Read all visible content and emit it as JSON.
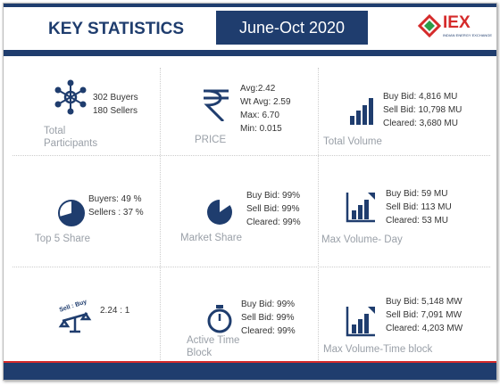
{
  "header": {
    "title": "KEY STATISTICS",
    "period": "June-Oct 2020",
    "logo": {
      "name": "IEX",
      "tagline": "INDIAN ENERGY EXCHANGE"
    }
  },
  "cells": [
    {
      "label": "Total Participants",
      "lines": [
        "302 Buyers",
        "180 Sellers"
      ]
    },
    {
      "label": "PRICE",
      "lines": [
        "Avg:2.42",
        "Wt Avg: 2.59",
        "Max: 6.70",
        "Min: 0.015"
      ]
    },
    {
      "label": "Total Volume",
      "lines": [
        "Buy Bid: 4,816 MU",
        "Sell Bid: 10,798 MU",
        "Cleared: 3,680 MU"
      ]
    },
    {
      "label": "Top 5 Share",
      "lines": [
        "Buyers: 49 %",
        "Sellers : 37 %"
      ]
    },
    {
      "label": "Market Share",
      "lines": [
        "Buy Bid: 99%",
        "Sell Bid: 99%",
        "Cleared: 99%"
      ]
    },
    {
      "label": "Max Volume- Day",
      "lines": [
        "Buy Bid: 59 MU",
        "Sell Bid: 113 MU",
        "Cleared: 53 MU"
      ]
    },
    {
      "icon_text": "Sell : Buy",
      "lines": [
        "2.24 : 1"
      ]
    },
    {
      "label": "Active Time Block",
      "lines": [
        "Buy Bid: 99%",
        "Sell Bid: 99%",
        "Cleared: 99%"
      ]
    },
    {
      "label": "Max Volume-Time block",
      "lines": [
        "Buy Bid: 5,148 MW",
        "Sell Bid: 7,091 MW",
        "Cleared: 4,203 MW"
      ]
    }
  ]
}
